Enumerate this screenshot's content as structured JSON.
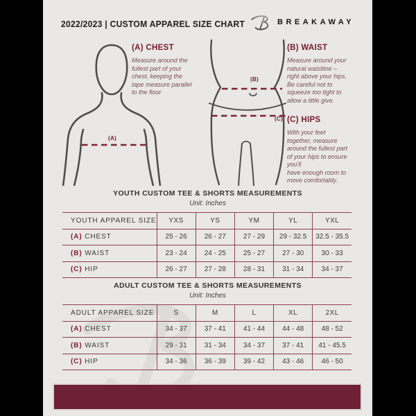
{
  "header": {
    "title": "2022/2023  |  CUSTOM APPAREL SIZE CHART",
    "brand": "BREAKAWAY",
    "logo_icon": "breakaway-b-logo"
  },
  "colors": {
    "page_background": "#e9e8e6",
    "pillarbox": "#000000",
    "maroon_heading": "#76192f",
    "guide_text": "#7b4b5b",
    "dashed_line": "#7d2138",
    "table_line": "#8d3d55",
    "footer_bar": "#6e2036",
    "body_outline": "#4e4d4d"
  },
  "measure_guide": {
    "chest": {
      "heading": "(A) CHEST",
      "text": "Measure around the\nfullest part of your\nchest, keeping the\ntape measure parallel\nto the floor"
    },
    "waist": {
      "heading": "(B) WAIST",
      "text": "Measure around your\nnatural waistline –\nright above your hips.\nBe careful not to\nsqueeze too tight to\nallow a little give."
    },
    "hips": {
      "heading": "(C) HIPS",
      "text": "With your feet\ntogether, measure\naround the fullest part\nof your hips to ensure\nyou'll\nhave enough room to\nmove comfortably."
    },
    "labels": {
      "chest": "(A)",
      "waist": "(B)",
      "hips": "(C)"
    }
  },
  "tables": [
    {
      "title": "YOUTH CUSTOM TEE & SHORTS MEASUREMENTS",
      "unit": "Unit: Inches",
      "size_header": "YOUTH APPAREL SIZE",
      "sizes": [
        "YXS",
        "YS",
        "YM",
        "YL",
        "YXL"
      ],
      "rows": [
        {
          "prefix": "(A)",
          "label": "CHEST",
          "values": [
            "25 - 26",
            "26 - 27",
            "27 - 29",
            "29 - 32.5",
            "32.5 - 35.5"
          ]
        },
        {
          "prefix": "(B)",
          "label": "WAIST",
          "values": [
            "23 - 24",
            "24 - 25",
            "25 - 27",
            "27 - 30",
            "30 - 33"
          ]
        },
        {
          "prefix": "(C)",
          "label": "HIP",
          "values": [
            "26 - 27",
            "27 - 28",
            "28 - 31",
            "31 - 34",
            "34 - 37"
          ]
        }
      ]
    },
    {
      "title": "ADULT CUSTOM TEE & SHORTS MEASUREMENTS",
      "unit": "Unit: Inches",
      "size_header": "ADULT APPAREL SIZE",
      "sizes": [
        "S",
        "M",
        "L",
        "XL",
        "2XL"
      ],
      "rows": [
        {
          "prefix": "(A)",
          "label": "CHEST",
          "values": [
            "34 - 37",
            "37 - 41",
            "41 - 44",
            "44 - 48",
            "48 - 52"
          ]
        },
        {
          "prefix": "(B)",
          "label": "WAIST",
          "values": [
            "29 - 31",
            "31 - 34",
            "34 - 37",
            "37 - 41",
            "41 - 45.5"
          ]
        },
        {
          "prefix": "(C)",
          "label": "HIP",
          "values": [
            "34 - 36",
            "36 - 39",
            "39 - 42",
            "43 - 46",
            "46 - 50"
          ]
        }
      ]
    }
  ]
}
